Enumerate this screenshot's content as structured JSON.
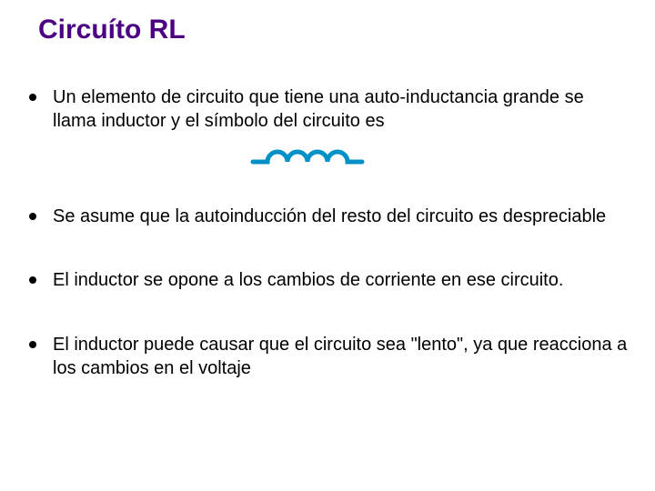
{
  "title": "Circuíto RL",
  "title_color": "#4b0082",
  "title_fontsize": 30,
  "body_fontsize": 20,
  "body_color": "#000000",
  "background_color": "#ffffff",
  "bullets": [
    "Un elemento de circuito que tiene una auto-inductancia grande se llama inductor y el símbolo del circuito es",
    " Se asume que la autoinducción del resto del circuito es despreciable",
    "El inductor se opone a los cambios de corriente en ese circuito.",
    " El inductor puede causar que el circuito sea \"lento\", ya que reacciona a los cambios en el voltaje"
  ],
  "inductor_symbol": {
    "stroke_color": "#0090c8",
    "stroke_width": 5,
    "loops": 4
  }
}
